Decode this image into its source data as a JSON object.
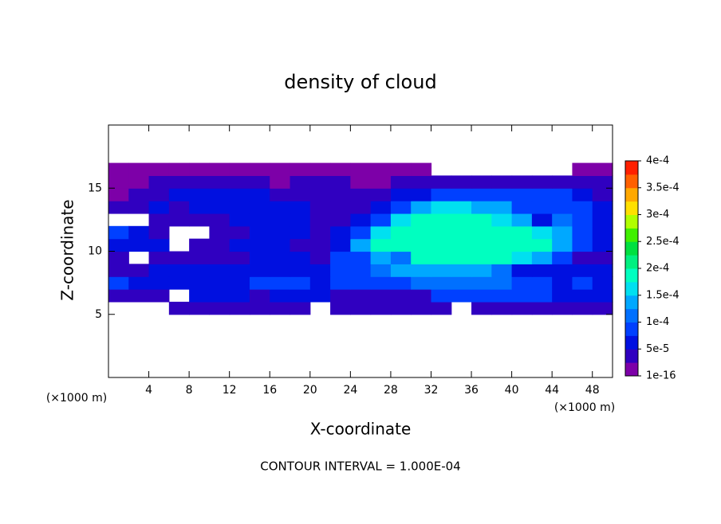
{
  "chart_data": {
    "type": "contour",
    "title": "density of cloud",
    "x_label": "X-coordinate",
    "y_label": "Z-coordinate",
    "x_unit_left": "(×1000 m)",
    "x_unit_right": "(×1000 m)",
    "note": "CONTOUR INTERVAL = 1.000E-04",
    "xlim": [
      0,
      50
    ],
    "ylim": [
      0,
      20
    ],
    "xticks": [
      4,
      8,
      12,
      16,
      20,
      24,
      28,
      32,
      36,
      40,
      44,
      48
    ],
    "yticks": [
      5,
      10,
      15
    ],
    "x": [
      1,
      3,
      5,
      7,
      9,
      11,
      13,
      15,
      17,
      19,
      21,
      23,
      25,
      27,
      29,
      31,
      33,
      35,
      37,
      39,
      41,
      43,
      45,
      47,
      49
    ],
    "y": [
      5.5,
      6.5,
      7.5,
      8.5,
      9.5,
      10.5,
      11.5,
      12.5,
      13.5,
      14.5,
      15.5,
      16.5
    ],
    "z": [
      [
        null,
        null,
        null,
        3e-05,
        3e-05,
        3e-05,
        3e-05,
        3e-05,
        3e-05,
        3e-05,
        null,
        3e-05,
        3e-05,
        3e-05,
        3e-05,
        3e-05,
        3e-05,
        null,
        3e-05,
        3e-05,
        3e-05,
        3e-05,
        3e-05,
        3e-05,
        3e-05
      ],
      [
        5e-05,
        5e-05,
        5e-05,
        null,
        6e-05,
        6e-05,
        6e-05,
        5e-05,
        6e-05,
        6e-05,
        6e-05,
        5e-05,
        5e-05,
        5e-05,
        5e-05,
        5e-05,
        9e-05,
        9e-05,
        9e-05,
        9e-05,
        8e-05,
        8e-05,
        6e-05,
        6e-05,
        6e-05
      ],
      [
        0.0001,
        6e-05,
        6e-05,
        6e-05,
        6e-05,
        6e-05,
        6e-05,
        9e-05,
        9e-05,
        8e-05,
        7e-05,
        8e-05,
        8e-05,
        8e-05,
        8e-05,
        0.00011,
        0.00011,
        0.00011,
        0.00011,
        0.00011,
        0.0001,
        0.0001,
        7e-05,
        0.0001,
        7e-05
      ],
      [
        5e-05,
        5e-05,
        6e-05,
        6e-05,
        6e-05,
        6e-05,
        6e-05,
        7e-05,
        7e-05,
        7e-05,
        6e-05,
        8e-05,
        8e-05,
        0.00012,
        0.00013,
        0.00015,
        0.00015,
        0.00015,
        0.00015,
        0.00012,
        6e-05,
        6e-05,
        6e-05,
        6e-05,
        6e-05
      ],
      [
        3e-05,
        null,
        5e-05,
        5e-05,
        5e-05,
        3e-05,
        4e-05,
        6e-05,
        6e-05,
        6e-05,
        5e-05,
        8e-05,
        0.0001,
        0.00013,
        0.00012,
        0.00018,
        0.00018,
        0.00018,
        0.00018,
        0.00018,
        0.00016,
        0.00015,
        8e-05,
        5e-05,
        5e-05
      ],
      [
        6e-05,
        6e-05,
        6e-05,
        null,
        5e-05,
        5e-05,
        6e-05,
        7e-05,
        6e-05,
        5e-05,
        4e-05,
        6e-05,
        0.00015,
        0.00018,
        0.0002,
        0.0002,
        0.0002,
        0.0002,
        0.0002,
        0.0002,
        0.0002,
        0.00018,
        0.00015,
        8e-05,
        6e-05
      ],
      [
        8e-05,
        6e-05,
        3e-05,
        null,
        null,
        5e-05,
        5e-05,
        7e-05,
        7e-05,
        6e-05,
        4e-05,
        6e-05,
        0.0001,
        0.00016,
        0.0002,
        0.0002,
        0.0002,
        0.0002,
        0.0002,
        0.0002,
        0.00018,
        0.00017,
        0.00015,
        0.0001,
        7e-05
      ],
      [
        null,
        null,
        4e-05,
        5e-05,
        5e-05,
        5e-05,
        6e-05,
        7e-05,
        7e-05,
        7e-05,
        5e-05,
        5e-05,
        6e-05,
        0.0001,
        0.00017,
        0.00018,
        0.00018,
        0.00018,
        0.00018,
        0.00016,
        0.00014,
        6e-05,
        0.00011,
        0.0001,
        7e-05
      ],
      [
        3e-05,
        3e-05,
        6e-05,
        5e-05,
        6e-05,
        6e-05,
        6e-05,
        7e-05,
        7e-05,
        6e-05,
        5e-05,
        5e-05,
        5e-05,
        7e-05,
        0.0001,
        0.00013,
        0.00016,
        0.00016,
        0.00015,
        0.00013,
        0.0001,
        9e-05,
        0.0001,
        0.0001,
        6e-05
      ],
      [
        2e-05,
        4e-05,
        5e-05,
        6e-05,
        6e-05,
        6e-05,
        7e-05,
        6e-05,
        4e-05,
        5e-05,
        5e-05,
        4e-05,
        3e-05,
        5e-05,
        6e-05,
        7e-05,
        8e-05,
        8e-05,
        8e-05,
        8e-05,
        8e-05,
        8e-05,
        8e-05,
        6e-05,
        5e-05
      ],
      [
        1e-05,
        2e-05,
        4e-05,
        4e-05,
        3e-05,
        3e-05,
        3e-05,
        3e-05,
        2e-05,
        3e-05,
        4e-05,
        3e-05,
        2e-05,
        2e-05,
        3e-05,
        3e-05,
        4e-05,
        4e-05,
        5e-05,
        5e-05,
        5e-05,
        5e-05,
        5e-05,
        4e-05,
        3e-05
      ],
      [
        1e-05,
        1e-05,
        1e-05,
        1e-05,
        1e-05,
        1e-05,
        1e-05,
        1e-05,
        1e-05,
        1e-05,
        1e-05,
        1e-05,
        1e-05,
        1e-05,
        1e-05,
        1e-05,
        null,
        null,
        null,
        null,
        null,
        null,
        null,
        1e-05,
        1e-05
      ]
    ],
    "colorbar_ticks": [
      {
        "value": 1e-16,
        "label": "1e-16"
      },
      {
        "value": 5e-05,
        "label": "5e-5"
      },
      {
        "value": 0.0001,
        "label": "1e-4"
      },
      {
        "value": 0.00015,
        "label": "1.5e-4"
      },
      {
        "value": 0.0002,
        "label": "2e-4"
      },
      {
        "value": 0.00025,
        "label": "2.5e-4"
      },
      {
        "value": 0.0003,
        "label": "3e-4"
      },
      {
        "value": 0.00035,
        "label": "3.5e-4"
      },
      {
        "value": 0.0004,
        "label": "4e-4"
      }
    ],
    "colors": [
      "#7d00a8",
      "#3000c0",
      "#0010e0",
      "#0040ff",
      "#0070ff",
      "#00a8ff",
      "#00e0f0",
      "#00ffc0",
      "#00f080",
      "#00e040",
      "#40f000",
      "#b0ff00",
      "#ffe000",
      "#ffa800",
      "#ff6000",
      "#ff2000"
    ]
  }
}
